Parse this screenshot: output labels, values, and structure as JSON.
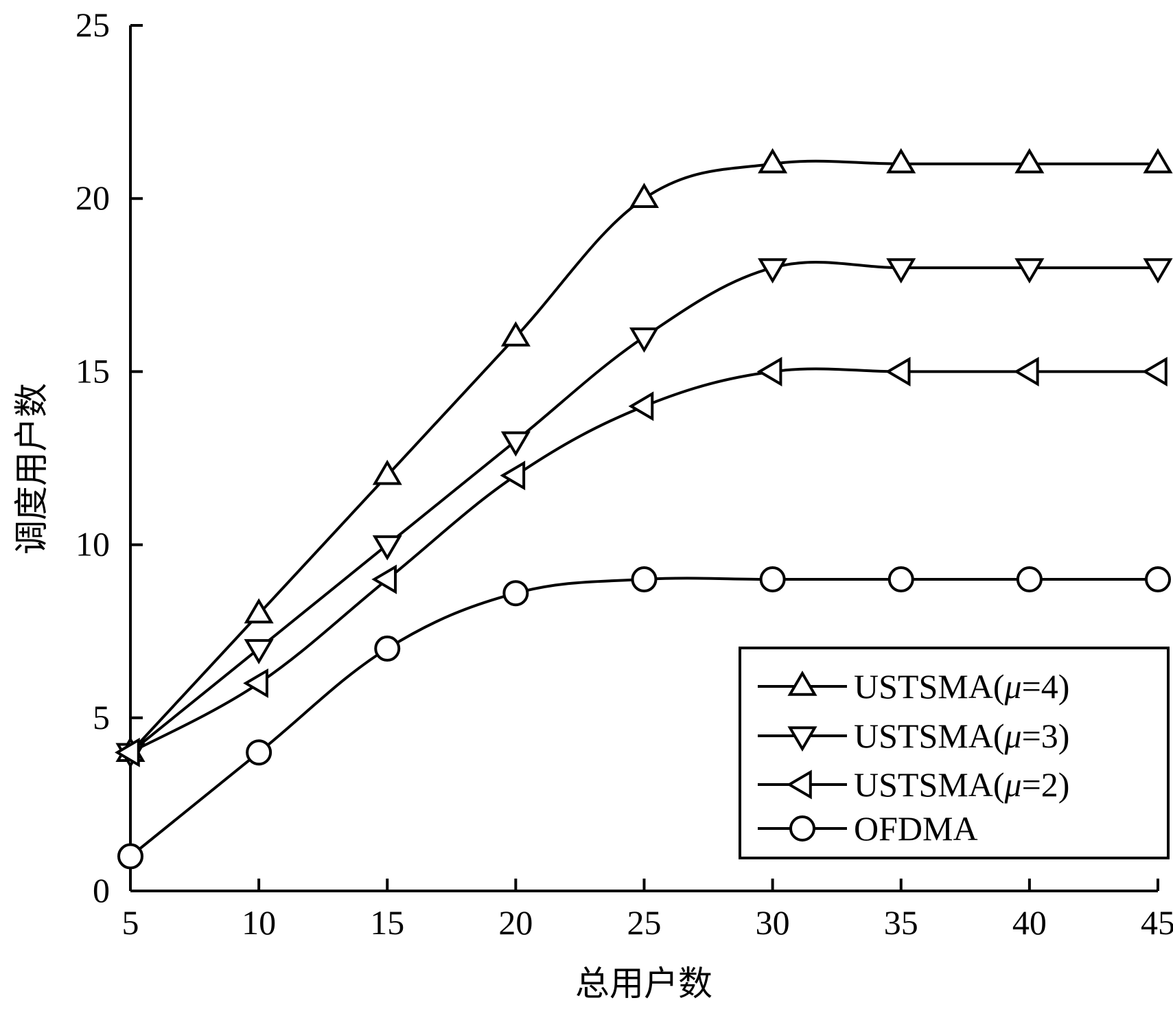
{
  "chart_data": {
    "type": "line",
    "xlabel": "总用户数",
    "ylabel": "调度用户数",
    "xlim": [
      5,
      45
    ],
    "ylim": [
      0,
      25
    ],
    "xticks": [
      5,
      10,
      15,
      20,
      25,
      30,
      35,
      40,
      45
    ],
    "yticks": [
      0,
      5,
      10,
      15,
      20,
      25
    ],
    "x": [
      5,
      10,
      15,
      20,
      25,
      30,
      35,
      40,
      45
    ],
    "series": [
      {
        "name": "USTSMA(μ=4)",
        "label_prefix": "USTSMA(",
        "label_symbol": "μ",
        "label_suffix": "=4)",
        "marker": "triangle-up",
        "values": [
          4,
          8,
          12,
          16,
          20,
          21,
          21,
          21,
          21
        ]
      },
      {
        "name": "USTSMA(μ=3)",
        "label_prefix": "USTSMA(",
        "label_symbol": "μ",
        "label_suffix": "=3)",
        "marker": "triangle-down",
        "values": [
          4,
          7,
          10,
          13,
          16,
          18,
          18,
          18,
          18
        ]
      },
      {
        "name": "USTSMA(μ=2)",
        "label_prefix": "USTSMA(",
        "label_symbol": "μ",
        "label_suffix": "=2)",
        "marker": "triangle-left",
        "values": [
          4,
          6,
          9,
          12,
          14,
          15,
          15,
          15,
          15
        ]
      },
      {
        "name": "OFDMA",
        "label_prefix": "OFDMA",
        "label_symbol": "",
        "label_suffix": "",
        "marker": "circle",
        "values": [
          1,
          4,
          7,
          8.6,
          9,
          9,
          9,
          9,
          9
        ]
      }
    ],
    "legend_position": "bottom-right",
    "grid": false,
    "line_color": "#000000",
    "background": "#ffffff"
  }
}
